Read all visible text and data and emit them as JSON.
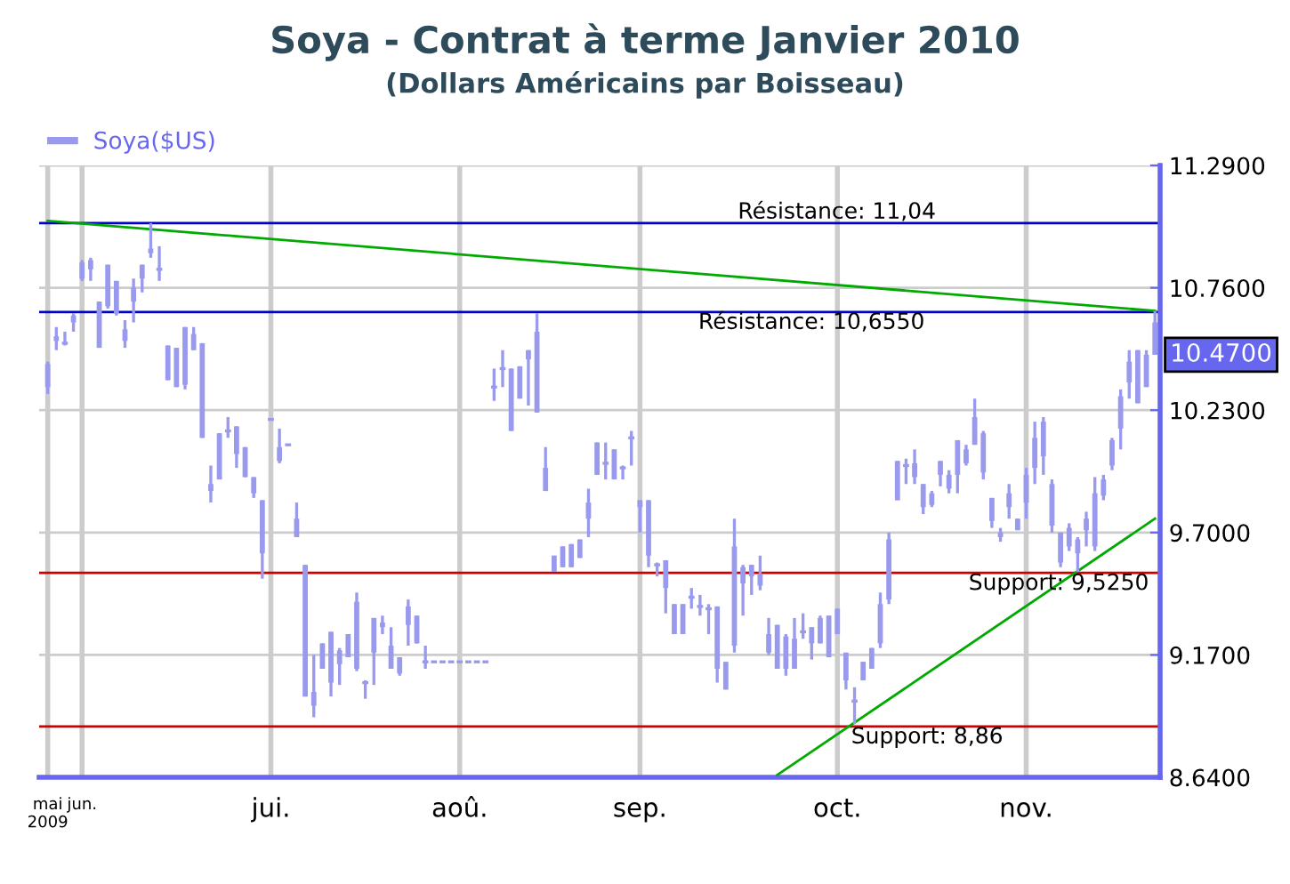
{
  "chart_data": {
    "type": "candlestick",
    "title": "Soya - Contrat à terme Janvier 2010",
    "subtitle": "(Dollars Américains par Boisseau)",
    "categories": [
      "mai\n2009",
      null,
      null,
      null,
      "jun.",
      null,
      null,
      null,
      null,
      null,
      null,
      null,
      null,
      null,
      null,
      null,
      null,
      null,
      null,
      null,
      null,
      null,
      null,
      null,
      null,
      null,
      "jui.",
      null,
      null,
      null,
      null,
      null,
      null,
      null,
      null,
      null,
      null,
      null,
      null,
      null,
      null,
      null,
      null,
      null,
      null,
      null,
      null,
      null,
      "aoû.",
      null,
      null,
      null,
      null,
      null,
      null,
      null,
      null,
      null,
      null,
      null,
      null,
      null,
      null,
      null,
      null,
      null,
      null,
      null,
      null,
      "sep.",
      null,
      null,
      null,
      null,
      null,
      null,
      null,
      null,
      null,
      null,
      null,
      null,
      null,
      null,
      null,
      null,
      null,
      null,
      null,
      null,
      null,
      null,
      "oct.",
      null,
      null,
      null,
      null,
      null,
      null,
      null,
      null,
      null,
      null,
      null,
      null,
      null,
      null,
      null,
      null,
      null,
      null,
      null,
      null,
      null,
      "nov.",
      null,
      null,
      null,
      null,
      null,
      null,
      null,
      null,
      null,
      null,
      null,
      null,
      null,
      null,
      null
    ],
    "series": [
      {
        "name": "Soya($US)",
        "color": "#9999ee",
        "ohlc": [
          [
            10.43,
            10.44,
            10.3,
            10.33
          ],
          [
            10.55,
            10.59,
            10.49,
            10.53
          ],
          [
            10.52,
            10.57,
            10.51,
            10.52
          ],
          [
            10.64,
            10.65,
            10.57,
            10.61
          ],
          [
            10.87,
            10.88,
            10.79,
            10.8
          ],
          [
            10.88,
            10.89,
            10.79,
            10.84
          ],
          [
            10.7,
            10.7,
            10.5,
            10.5
          ],
          [
            10.86,
            10.86,
            10.67,
            10.68
          ],
          [
            10.79,
            10.79,
            10.64,
            10.65
          ],
          [
            10.58,
            10.62,
            10.5,
            10.53
          ],
          [
            10.76,
            10.8,
            10.61,
            10.7
          ],
          [
            10.86,
            10.86,
            10.74,
            10.8
          ],
          [
            10.93,
            11.04,
            10.89,
            10.91
          ],
          [
            10.84,
            10.94,
            10.79,
            10.84
          ],
          [
            10.51,
            10.51,
            10.36,
            10.36
          ],
          [
            10.5,
            10.5,
            10.33,
            10.33
          ],
          [
            10.59,
            10.59,
            10.32,
            10.34
          ],
          [
            10.56,
            10.59,
            10.49,
            10.49
          ],
          [
            10.52,
            10.52,
            10.11,
            10.11
          ],
          [
            9.91,
            9.99,
            9.83,
            9.88
          ],
          [
            10.13,
            10.13,
            9.93,
            9.93
          ],
          [
            10.14,
            10.2,
            10.11,
            10.14
          ],
          [
            10.16,
            10.16,
            9.98,
            10.04
          ],
          [
            10.07,
            10.07,
            9.94,
            9.94
          ],
          [
            9.94,
            9.94,
            9.85,
            9.87
          ],
          [
            9.84,
            9.84,
            9.5,
            9.61
          ],
          [
            10.19,
            10.19,
            10.19,
            10.19
          ],
          [
            10.07,
            10.15,
            10.0,
            10.01
          ],
          [
            10.08,
            10.08,
            10.08,
            10.08
          ],
          [
            9.76,
            9.83,
            9.68,
            9.68
          ],
          [
            9.56,
            9.56,
            8.99,
            8.99
          ],
          [
            9.01,
            9.17,
            8.9,
            8.95
          ],
          [
            9.22,
            9.22,
            9.11,
            9.11
          ],
          [
            9.27,
            9.27,
            8.99,
            9.05
          ],
          [
            9.19,
            9.2,
            9.04,
            9.13
          ],
          [
            9.26,
            9.26,
            9.16,
            9.16
          ],
          [
            9.4,
            9.44,
            9.1,
            9.11
          ],
          [
            9.05,
            9.06,
            8.98,
            9.05
          ],
          [
            9.33,
            9.33,
            9.04,
            9.18
          ],
          [
            9.31,
            9.34,
            9.26,
            9.29
          ],
          [
            9.21,
            9.29,
            9.11,
            9.11
          ],
          [
            9.16,
            9.16,
            9.08,
            9.09
          ],
          [
            9.38,
            9.41,
            9.21,
            9.3
          ],
          [
            9.34,
            9.34,
            9.22,
            9.22
          ],
          [
            9.14,
            9.21,
            9.11,
            9.14
          ],
          [
            9.14,
            9.14,
            9.14,
            9.14
          ],
          [
            9.14,
            9.14,
            9.14,
            9.14
          ],
          [
            9.14,
            9.14,
            9.14,
            9.14
          ],
          [
            9.14,
            9.14,
            9.14,
            9.14
          ],
          [
            9.14,
            9.14,
            9.14,
            9.14
          ],
          [
            9.14,
            9.14,
            9.14,
            9.14
          ],
          [
            9.14,
            9.14,
            9.14,
            9.14
          ],
          [
            10.33,
            10.41,
            10.27,
            10.33
          ],
          [
            10.41,
            10.49,
            10.33,
            10.41
          ],
          [
            10.41,
            10.41,
            10.14,
            10.14
          ],
          [
            10.42,
            10.42,
            10.28,
            10.28
          ],
          [
            10.49,
            10.49,
            10.25,
            10.45
          ],
          [
            10.57,
            10.65,
            10.22,
            10.22
          ],
          [
            9.98,
            10.07,
            9.88,
            9.88
          ],
          [
            9.6,
            9.6,
            9.53,
            9.53
          ],
          [
            9.64,
            9.64,
            9.55,
            9.55
          ],
          [
            9.65,
            9.65,
            9.55,
            9.55
          ],
          [
            9.67,
            9.67,
            9.59,
            9.59
          ],
          [
            9.83,
            9.89,
            9.68,
            9.76
          ],
          [
            10.09,
            10.09,
            9.95,
            9.95
          ],
          [
            10.0,
            10.09,
            9.93,
            10.0
          ],
          [
            10.06,
            10.06,
            9.93,
            9.93
          ],
          [
            9.98,
            9.99,
            9.93,
            9.98
          ],
          [
            10.11,
            10.14,
            9.99,
            10.11
          ],
          [
            9.84,
            9.84,
            9.7,
            9.81
          ],
          [
            9.84,
            9.84,
            9.55,
            9.6
          ],
          [
            9.56,
            9.57,
            9.51,
            9.56
          ],
          [
            9.58,
            9.58,
            9.35,
            9.46
          ],
          [
            9.39,
            9.39,
            9.26,
            9.26
          ],
          [
            9.39,
            9.39,
            9.26,
            9.26
          ],
          [
            9.42,
            9.46,
            9.37,
            9.42
          ],
          [
            9.38,
            9.43,
            9.34,
            9.38
          ],
          [
            9.37,
            9.39,
            9.26,
            9.37
          ],
          [
            9.38,
            9.38,
            9.05,
            9.11
          ],
          [
            9.14,
            9.14,
            9.02,
            9.02
          ],
          [
            9.64,
            9.76,
            9.18,
            9.21
          ],
          [
            9.55,
            9.56,
            9.34,
            9.48
          ],
          [
            9.56,
            9.56,
            9.43,
            9.51
          ],
          [
            9.52,
            9.6,
            9.45,
            9.47
          ],
          [
            9.26,
            9.33,
            9.17,
            9.18
          ],
          [
            9.3,
            9.3,
            9.11,
            9.11
          ],
          [
            9.25,
            9.26,
            9.08,
            9.11
          ],
          [
            9.24,
            9.33,
            9.11,
            9.11
          ],
          [
            9.27,
            9.35,
            9.24,
            9.27
          ],
          [
            9.29,
            9.29,
            9.15,
            9.22
          ],
          [
            9.33,
            9.34,
            9.22,
            9.22
          ],
          [
            9.34,
            9.34,
            9.16,
            9.16
          ],
          [
            9.37,
            9.37,
            9.26,
            9.26
          ],
          [
            9.18,
            9.18,
            9.02,
            9.06
          ],
          [
            8.97,
            9.03,
            8.87,
            8.97
          ],
          [
            9.14,
            9.14,
            9.06,
            9.06
          ],
          [
            9.2,
            9.2,
            9.11,
            9.11
          ],
          [
            9.39,
            9.44,
            9.2,
            9.22
          ],
          [
            9.67,
            9.7,
            9.39,
            9.41
          ],
          [
            10.01,
            10.01,
            9.84,
            9.84
          ],
          [
            9.99,
            10.02,
            9.91,
            9.99
          ],
          [
            10.0,
            10.06,
            9.91,
            9.94
          ],
          [
            9.91,
            9.91,
            9.78,
            9.81
          ],
          [
            9.87,
            9.88,
            9.81,
            9.82
          ],
          [
            10.01,
            10.01,
            9.9,
            9.95
          ],
          [
            9.95,
            9.97,
            9.87,
            9.89
          ],
          [
            10.1,
            10.1,
            9.87,
            9.95
          ],
          [
            10.06,
            10.08,
            9.99,
            10.0
          ],
          [
            10.2,
            10.28,
            10.08,
            10.08
          ],
          [
            10.13,
            10.14,
            9.93,
            9.96
          ],
          [
            9.85,
            9.85,
            9.72,
            9.75
          ],
          [
            9.7,
            9.72,
            9.66,
            9.68
          ],
          [
            9.87,
            9.91,
            9.76,
            9.81
          ],
          [
            9.76,
            9.76,
            9.71,
            9.71
          ],
          [
            9.95,
            9.98,
            9.76,
            9.83
          ],
          [
            10.11,
            10.18,
            9.91,
            9.98
          ],
          [
            10.18,
            10.2,
            9.95,
            10.03
          ],
          [
            9.91,
            9.93,
            9.7,
            9.73
          ],
          [
            9.7,
            9.7,
            9.55,
            9.57
          ],
          [
            9.72,
            9.74,
            9.62,
            9.64
          ],
          [
            9.67,
            9.68,
            9.53,
            9.61
          ],
          [
            9.76,
            9.79,
            9.64,
            9.71
          ],
          [
            9.87,
            9.94,
            9.62,
            9.64
          ],
          [
            9.93,
            9.95,
            9.84,
            9.86
          ],
          [
            10.1,
            10.11,
            9.97,
            9.99
          ],
          [
            10.29,
            10.32,
            10.06,
            10.15
          ],
          [
            10.44,
            10.49,
            10.28,
            10.35
          ],
          [
            10.49,
            10.49,
            10.26,
            10.26
          ],
          [
            10.47,
            10.49,
            10.33,
            10.33
          ],
          [
            10.61,
            10.66,
            10.47,
            10.47
          ]
        ]
      },
      {
        "type": "line",
        "color": "#00aa00",
        "values": [
          11.05,
          null,
          null,
          null,
          null,
          null,
          null,
          null,
          null,
          null,
          null,
          null,
          null,
          null,
          null,
          null,
          null,
          null,
          null,
          null,
          null,
          null,
          null,
          null,
          null,
          null,
          null,
          null,
          null,
          null,
          null,
          null,
          null,
          null,
          null,
          null,
          null,
          null,
          null,
          null,
          null,
          null,
          null,
          null,
          null,
          null,
          null,
          null,
          null,
          null,
          null,
          null,
          null,
          null,
          null,
          null,
          null,
          null,
          null,
          null,
          null,
          null,
          null,
          null,
          null,
          null,
          null,
          null,
          null,
          null,
          null,
          null,
          null,
          null,
          null,
          null,
          null,
          null,
          null,
          null,
          null,
          null,
          null,
          null,
          null,
          null,
          null,
          null,
          null,
          null,
          null,
          null,
          null,
          null,
          null,
          null,
          null,
          null,
          null,
          null,
          null,
          null,
          null,
          null,
          null,
          null,
          null,
          null,
          null,
          null,
          null,
          null,
          null,
          null,
          null,
          null,
          null,
          null,
          null,
          null,
          null,
          null,
          null,
          null,
          null,
          null,
          null,
          null,
          null,
          10.66
        ]
      },
      {
        "type": "line",
        "color": "#00aa00",
        "values": [
          null,
          null,
          null,
          null,
          null,
          null,
          null,
          null,
          null,
          null,
          null,
          null,
          null,
          null,
          null,
          null,
          null,
          null,
          null,
          null,
          null,
          null,
          null,
          null,
          null,
          null,
          null,
          null,
          null,
          null,
          null,
          null,
          null,
          null,
          null,
          null,
          null,
          null,
          null,
          null,
          null,
          null,
          null,
          null,
          null,
          null,
          null,
          null,
          null,
          null,
          null,
          null,
          null,
          null,
          null,
          null,
          null,
          null,
          null,
          null,
          null,
          null,
          null,
          null,
          null,
          null,
          null,
          null,
          null,
          null,
          null,
          null,
          null,
          null,
          null,
          null,
          null,
          null,
          null,
          null,
          null,
          null,
          null,
          null,
          null,
          8.65,
          null,
          null,
          null,
          null,
          null,
          null,
          null,
          null,
          null,
          null,
          null,
          null,
          null,
          null,
          null,
          null,
          null,
          null,
          null,
          null,
          null,
          null,
          null,
          null,
          null,
          null,
          null,
          null,
          null,
          null,
          null,
          null,
          null,
          null,
          null,
          null,
          null,
          null,
          null,
          null,
          null,
          null,
          null,
          9.76
        ]
      }
    ],
    "ylim": [
      8.64,
      11.29
    ],
    "yticks": [
      {
        "value": 8.64,
        "label": "8.6400"
      },
      {
        "value": 9.17,
        "label": "9.1700"
      },
      {
        "value": 9.7,
        "label": "9.7000"
      },
      {
        "value": 10.23,
        "label": "10.2300"
      },
      {
        "value": 10.76,
        "label": "10.7600"
      },
      {
        "value": 11.29,
        "label": "11.2900"
      }
    ],
    "ref_lines": [
      {
        "axis": "y",
        "value": 11.04,
        "label": "Résistance: 11,04",
        "color": "#0000cc"
      },
      {
        "axis": "y",
        "value": 10.655,
        "label": "Résistance: 10,6550",
        "color": "#0000cc"
      },
      {
        "axis": "y",
        "value": 9.525,
        "label": "Support: 9,5250",
        "color": "#cc0000"
      },
      {
        "axis": "y",
        "value": 8.86,
        "label": "Support: 8,86",
        "color": "#cc0000"
      }
    ],
    "annotations": [
      "10.4700"
    ],
    "grid": true,
    "legend": "top left"
  }
}
